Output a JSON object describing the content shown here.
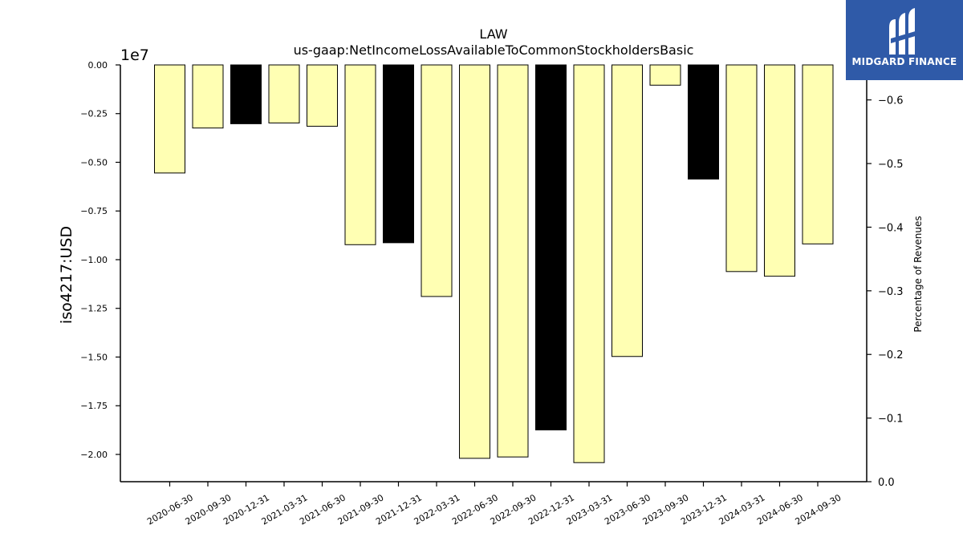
{
  "chart_data": {
    "type": "bar",
    "title": "LAW",
    "subtitle": "us-gaap:NetIncomeLossAvailableToCommonStockholdersBasic",
    "ylabel": "iso4217:USD",
    "y2label": "Percentage of Revenues",
    "offset_label": "1e7",
    "categories": [
      "2020-06-30",
      "2020-09-30",
      "2020-12-31",
      "2021-03-31",
      "2021-06-30",
      "2021-09-30",
      "2021-12-31",
      "2022-03-31",
      "2022-06-30",
      "2022-09-30",
      "2022-12-31",
      "2023-03-31",
      "2023-06-30",
      "2023-09-30",
      "2023-12-31",
      "2024-03-31",
      "2024-06-30",
      "2024-09-30"
    ],
    "values": [
      -5550000,
      -3240000,
      -3020000,
      -2980000,
      -3150000,
      -9230000,
      -9130000,
      -11890000,
      -20200000,
      -20130000,
      -18740000,
      -20420000,
      -14970000,
      -1040000,
      -5860000,
      -10610000,
      -10850000,
      -9190000
    ],
    "bar_colors": [
      "#ffffb3",
      "#ffffb3",
      "#000000",
      "#ffffb3",
      "#ffffb3",
      "#ffffb3",
      "#000000",
      "#ffffb3",
      "#ffffb3",
      "#ffffb3",
      "#000000",
      "#ffffb3",
      "#ffffb3",
      "#ffffb3",
      "#000000",
      "#ffffb3",
      "#ffffb3",
      "#ffffb3"
    ],
    "ylim": [
      -21400000,
      0
    ],
    "yticks": [
      0,
      -2500000,
      -5000000,
      -7500000,
      -10000000,
      -12500000,
      -15000000,
      -17500000,
      -20000000
    ],
    "ytick_labels": [
      "0.00",
      "−0.25",
      "−0.50",
      "−0.75",
      "−1.00",
      "−1.25",
      "−1.50",
      "−1.75",
      "−2.00"
    ],
    "y2lim": [
      0,
      -0.655
    ],
    "y2ticks": [
      0,
      -0.1,
      -0.2,
      -0.3,
      -0.4,
      -0.5,
      -0.6
    ],
    "y2tick_labels": [
      "0.0",
      "−0.1",
      "−0.2",
      "−0.3",
      "−0.4",
      "−0.5",
      "−0.6"
    ],
    "grid": false,
    "legend": "none"
  },
  "brand": {
    "name": "MIDGARD FINANCE",
    "color": "#2f5aa8"
  }
}
